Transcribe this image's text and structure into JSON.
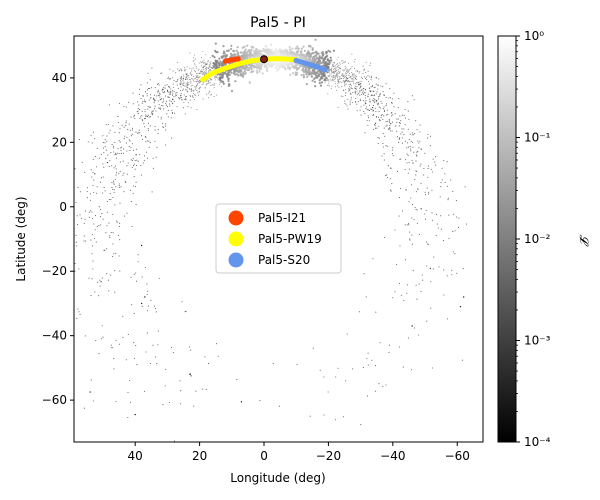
{
  "chart_data": {
    "type": "scatter",
    "title": "Pal5 - PI",
    "xlabel": "Longitude (deg)",
    "ylabel": "Latitude (deg)",
    "xlim": [
      59,
      -68
    ],
    "ylim": [
      -73,
      53
    ],
    "x_ticks": [
      40,
      20,
      0,
      -20,
      -40,
      -60
    ],
    "y_ticks": [
      40,
      20,
      0,
      -20,
      -40,
      -60
    ],
    "x_tick_labels": [
      "40",
      "20",
      "0",
      "−20",
      "−40",
      "−60"
    ],
    "y_tick_labels": [
      "40",
      "20",
      "0",
      "−20",
      "−40",
      "−60"
    ],
    "grid": false,
    "legend_position": "center",
    "colorbar": {
      "label": "𝓛",
      "scale": "log",
      "range": [
        0.0001,
        1
      ],
      "ticks": [
        "10⁰",
        "10⁻¹",
        "10⁻²",
        "10⁻³",
        "10⁻⁴"
      ],
      "tick_values": [
        1,
        0.1,
        0.01,
        0.001,
        0.0001
      ],
      "colormap": "gray"
    },
    "series": [
      {
        "name": "Pal5-I21",
        "color": "#FF4500",
        "x": [
          12,
          10,
          8
        ],
        "y": [
          45.2,
          45.6,
          45.9
        ]
      },
      {
        "name": "Pal5-PW19",
        "color": "#FFFF00",
        "x": [
          19,
          16,
          12,
          8,
          4,
          0,
          -4,
          -8,
          -10
        ],
        "y": [
          39.5,
          41.5,
          43.0,
          44.3,
          45.3,
          45.8,
          46.0,
          45.8,
          45.6
        ]
      },
      {
        "name": "Pal5-S20",
        "color": "#6495ED",
        "x": [
          -10,
          -13,
          -16,
          -19
        ],
        "y": [
          45.4,
          44.5,
          43.6,
          42.5
        ]
      }
    ],
    "progenitor": {
      "x": 0,
      "y": 45.8,
      "color": "#8B1A1A"
    },
    "stream_density": [
      {
        "x": 40,
        "y": -64.5
      },
      {
        "x": 54,
        "y": -57.5
      },
      {
        "x": 23,
        "y": -52
      },
      {
        "x": 7,
        "y": -60.5
      },
      {
        "x": 38,
        "y": -30
      },
      {
        "x": 37,
        "y": -28
      },
      {
        "x": 38,
        "y": -12
      },
      {
        "x": -62,
        "y": -28
      },
      {
        "x": -61,
        "y": -31
      },
      {
        "x": -46,
        "y": -37
      }
    ]
  }
}
